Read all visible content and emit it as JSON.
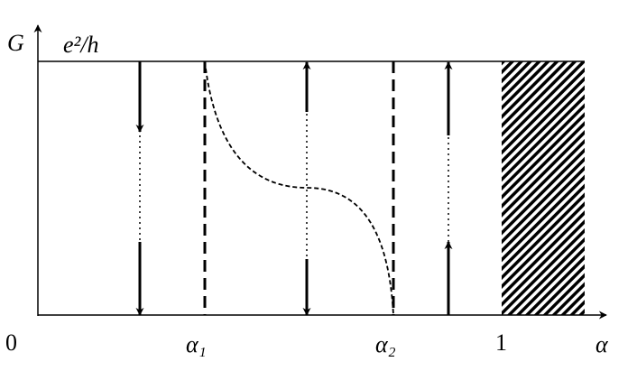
{
  "axes": {
    "y_label": "G",
    "x_label": "α",
    "top_level": "e²/h",
    "origin": "0"
  },
  "x_ticks": {
    "alpha1": "α₁",
    "alpha2": "α₂",
    "one": "1"
  }
}
